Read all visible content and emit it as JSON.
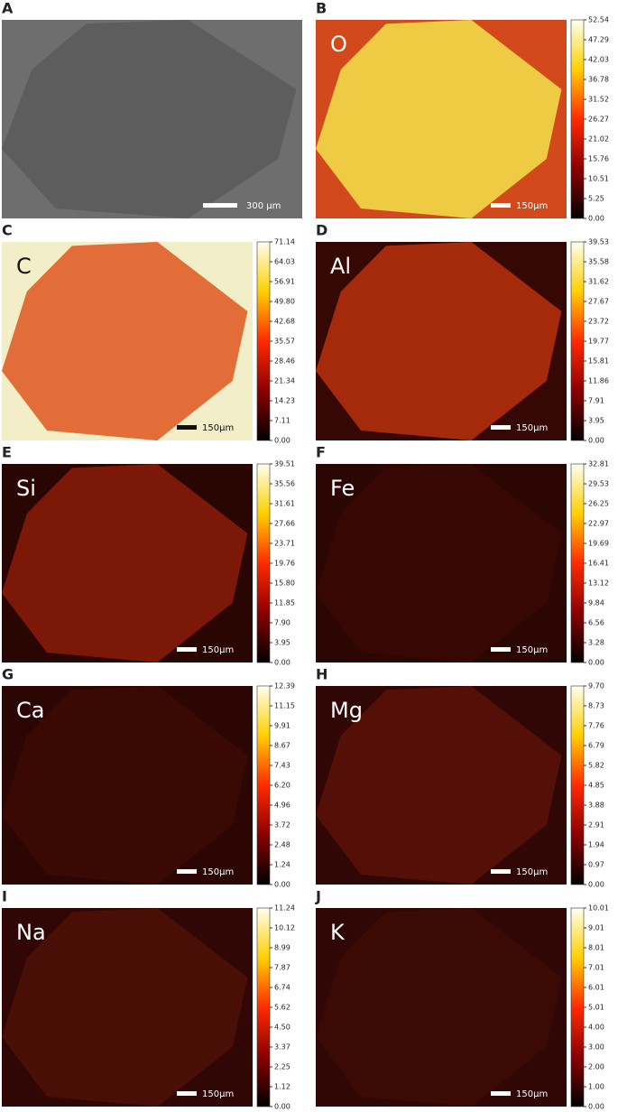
{
  "panels": [
    {
      "letter": "A",
      "scale_bar": "300 μm"
    },
    {
      "letter": "B",
      "element": "O",
      "scale_bar": "150μm",
      "colorbar_ticks": [
        "52.54",
        "47.29",
        "42.03",
        "36.78",
        "31.52",
        "26.27",
        "21.02",
        "15.76",
        "10.51",
        "5.25",
        "0.00"
      ]
    },
    {
      "letter": "C",
      "element": "C",
      "scale_bar": "150μm",
      "colorbar_ticks": [
        "71.14",
        "64.03",
        "56.91",
        "49.80",
        "42.68",
        "35.57",
        "28.46",
        "21.34",
        "14.23",
        "7.11",
        "0.00"
      ]
    },
    {
      "letter": "D",
      "element": "Al",
      "scale_bar": "150μm",
      "colorbar_ticks": [
        "39.53",
        "35.58",
        "31.62",
        "27.67",
        "23.72",
        "19.77",
        "15.81",
        "11.86",
        "7.91",
        "3.95",
        "0.00"
      ]
    },
    {
      "letter": "E",
      "element": "Si",
      "scale_bar": "150μm",
      "colorbar_ticks": [
        "39.51",
        "35.56",
        "31.61",
        "27.66",
        "23.71",
        "19.76",
        "15.80",
        "11.85",
        "7.90",
        "3.95",
        "0.00"
      ]
    },
    {
      "letter": "F",
      "element": "Fe",
      "scale_bar": "150μm",
      "colorbar_ticks": [
        "32.81",
        "29.53",
        "26.25",
        "22.97",
        "19.69",
        "16.41",
        "13.12",
        "9.84",
        "6.56",
        "3.28",
        "0.00"
      ]
    },
    {
      "letter": "G",
      "element": "Ca",
      "scale_bar": "150μm",
      "colorbar_ticks": [
        "12.39",
        "11.15",
        "9.91",
        "8.67",
        "7.43",
        "6.20",
        "4.96",
        "3.72",
        "2.48",
        "1.24",
        "0.00"
      ]
    },
    {
      "letter": "H",
      "element": "Mg",
      "scale_bar": "150μm",
      "colorbar_ticks": [
        "9.70",
        "8.73",
        "7.76",
        "6.79",
        "5.82",
        "4.85",
        "3.88",
        "2.91",
        "1.94",
        "0.97",
        "0.00"
      ]
    },
    {
      "letter": "I",
      "element": "Na",
      "scale_bar": "150μm",
      "colorbar_ticks": [
        "11.24",
        "10.12",
        "8.99",
        "7.87",
        "6.74",
        "5.62",
        "4.50",
        "3.37",
        "2.25",
        "1.12",
        "0.00"
      ]
    },
    {
      "letter": "J",
      "element": "K",
      "scale_bar": "150μm",
      "colorbar_ticks": [
        "10.01",
        "9.01",
        "8.01",
        "7.01",
        "6.01",
        "5.01",
        "4.00",
        "3.00",
        "2.00",
        "1.00",
        "0.00"
      ]
    }
  ]
}
